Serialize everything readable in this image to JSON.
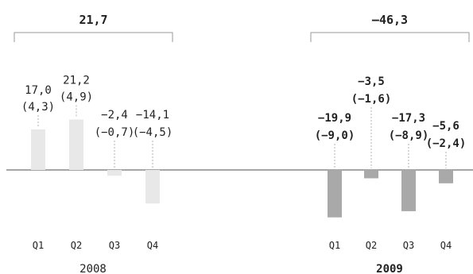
{
  "chart_data": {
    "type": "bar",
    "series": [
      {
        "year_label": "2008",
        "total_label": "21,7",
        "emphasis": "normal",
        "color": "#e8e8e8",
        "categories": [
          "Q1",
          "Q2",
          "Q3",
          "Q4"
        ],
        "values": [
          17.0,
          21.2,
          -2.4,
          -14.1
        ],
        "value_labels": [
          "17,0",
          "21,2",
          "−2,4",
          "−14,1"
        ],
        "secondary_labels": [
          "(4,3)",
          "(4,9)",
          "(−0,7)",
          "(−4,5)"
        ]
      },
      {
        "year_label": "2009",
        "total_label": "–46,3",
        "emphasis": "bold",
        "color": "#a9a9a9",
        "categories": [
          "Q1",
          "Q2",
          "Q3",
          "Q4"
        ],
        "values": [
          -19.9,
          -3.5,
          -17.3,
          -5.6
        ],
        "value_labels": [
          "−19,9",
          "−3,5",
          "−17,3",
          "−5,6"
        ],
        "secondary_labels": [
          "(−9,0)",
          "(−1,6)",
          "(−8,9)",
          "(−2,4)"
        ]
      }
    ],
    "baseline": 0,
    "grid": false,
    "legend": "none"
  },
  "colors": {
    "axis": "#888888",
    "bracket": "#999999",
    "leader": "#b0b0b0",
    "text": "#222222"
  }
}
